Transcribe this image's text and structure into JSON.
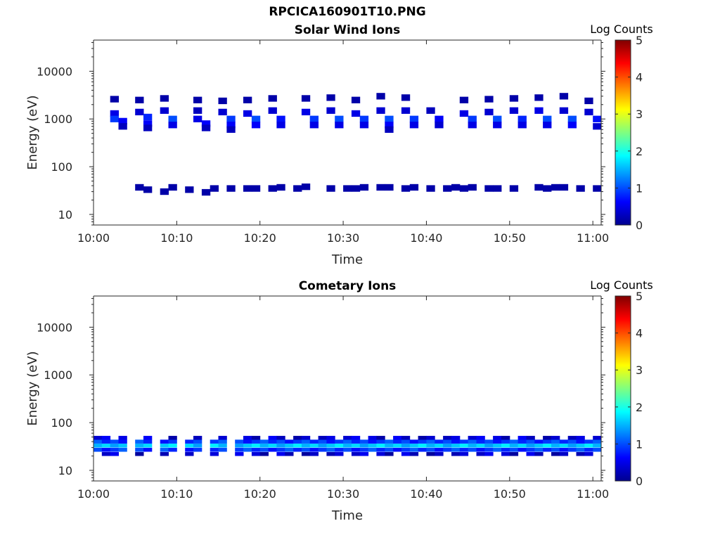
{
  "figure_title": "RPCICA160901T10.PNG",
  "colors": {
    "colormap": "jet",
    "axis": "#262626",
    "background": "#ffffff"
  },
  "chart_data": [
    {
      "type": "heatmap",
      "title": "Solar Wind Ions",
      "xlabel": "Time",
      "ylabel": "Energy (eV)",
      "y_scale": "log",
      "ylim": [
        6,
        45000
      ],
      "xlim": [
        "10:00",
        "11:01"
      ],
      "x_ticks": [
        "10:00",
        "10:10",
        "10:20",
        "10:30",
        "10:40",
        "10:50",
        "11:00"
      ],
      "y_ticks": [
        "10",
        "100",
        "1000",
        "10000"
      ],
      "colorbar": {
        "label": "Log Counts",
        "min": 0,
        "max": 5,
        "ticks": [
          "0",
          "1",
          "2",
          "3",
          "4",
          "5"
        ]
      },
      "grid": false,
      "cells": [
        [
          "10:02",
          2600,
          0.2
        ],
        [
          "10:02",
          1300,
          0.5
        ],
        [
          "10:02",
          1000,
          0.9
        ],
        [
          "10:03",
          900,
          0.6
        ],
        [
          "10:03",
          700,
          0.3
        ],
        [
          "10:05",
          2500,
          0.2
        ],
        [
          "10:05",
          1400,
          0.4
        ],
        [
          "10:06",
          1100,
          0.8
        ],
        [
          "10:06",
          800,
          0.6
        ],
        [
          "10:06",
          650,
          0.3
        ],
        [
          "10:08",
          2700,
          0.2
        ],
        [
          "10:08",
          1500,
          0.4
        ],
        [
          "10:09",
          1000,
          1.0
        ],
        [
          "10:09",
          750,
          0.5
        ],
        [
          "10:12",
          2500,
          0.2
        ],
        [
          "10:12",
          1500,
          0.3
        ],
        [
          "10:12",
          1000,
          0.5
        ],
        [
          "10:13",
          800,
          0.6
        ],
        [
          "10:13",
          650,
          0.3
        ],
        [
          "10:15",
          2400,
          0.2
        ],
        [
          "10:15",
          1400,
          0.4
        ],
        [
          "10:16",
          1000,
          0.9
        ],
        [
          "10:16",
          750,
          0.6
        ],
        [
          "10:16",
          600,
          0.3
        ],
        [
          "10:18",
          2500,
          0.2
        ],
        [
          "10:18",
          1300,
          0.5
        ],
        [
          "10:19",
          1000,
          1.0
        ],
        [
          "10:19",
          750,
          0.6
        ],
        [
          "10:21",
          2700,
          0.2
        ],
        [
          "10:21",
          1500,
          0.4
        ],
        [
          "10:22",
          1000,
          0.7
        ],
        [
          "10:22",
          750,
          0.5
        ],
        [
          "10:25",
          2700,
          0.2
        ],
        [
          "10:25",
          1400,
          0.5
        ],
        [
          "10:26",
          1000,
          0.9
        ],
        [
          "10:26",
          750,
          0.5
        ],
        [
          "10:28",
          2800,
          0.2
        ],
        [
          "10:28",
          1500,
          0.4
        ],
        [
          "10:29",
          1000,
          1.0
        ],
        [
          "10:29",
          750,
          0.5
        ],
        [
          "10:31",
          2500,
          0.2
        ],
        [
          "10:31",
          1300,
          0.5
        ],
        [
          "10:32",
          1000,
          0.9
        ],
        [
          "10:32",
          750,
          0.5
        ],
        [
          "10:34",
          3000,
          0.2
        ],
        [
          "10:34",
          1500,
          0.4
        ],
        [
          "10:35",
          1000,
          1.0
        ],
        [
          "10:35",
          750,
          0.6
        ],
        [
          "10:35",
          600,
          0.3
        ],
        [
          "10:37",
          2800,
          0.2
        ],
        [
          "10:37",
          1500,
          0.4
        ],
        [
          "10:38",
          1000,
          0.9
        ],
        [
          "10:38",
          750,
          0.5
        ],
        [
          "10:40",
          1500,
          0.3
        ],
        [
          "10:41",
          1000,
          0.6
        ],
        [
          "10:41",
          750,
          0.4
        ],
        [
          "10:44",
          2500,
          0.2
        ],
        [
          "10:44",
          1300,
          0.5
        ],
        [
          "10:45",
          1000,
          0.9
        ],
        [
          "10:45",
          750,
          0.5
        ],
        [
          "10:47",
          2600,
          0.2
        ],
        [
          "10:47",
          1400,
          0.4
        ],
        [
          "10:48",
          1000,
          1.0
        ],
        [
          "10:48",
          750,
          0.5
        ],
        [
          "10:50",
          2700,
          0.2
        ],
        [
          "10:50",
          1500,
          0.4
        ],
        [
          "10:51",
          1000,
          0.8
        ],
        [
          "10:51",
          750,
          0.5
        ],
        [
          "10:53",
          2800,
          0.2
        ],
        [
          "10:53",
          1500,
          0.5
        ],
        [
          "10:54",
          1000,
          1.0
        ],
        [
          "10:54",
          750,
          0.5
        ],
        [
          "10:56",
          3000,
          0.2
        ],
        [
          "10:56",
          1500,
          0.4
        ],
        [
          "10:57",
          1000,
          1.0
        ],
        [
          "10:57",
          750,
          0.6
        ],
        [
          "10:59",
          2400,
          0.2
        ],
        [
          "10:59",
          1400,
          0.4
        ],
        [
          "11:00",
          1000,
          0.7
        ],
        [
          "11:00",
          700,
          0.4
        ],
        [
          "10:05",
          37,
          0.2
        ],
        [
          "10:06",
          33,
          0.2
        ],
        [
          "10:08",
          30,
          0.2
        ],
        [
          "10:09",
          37,
          0.2
        ],
        [
          "10:11",
          33,
          0.2
        ],
        [
          "10:13",
          29,
          0.2
        ],
        [
          "10:14",
          35,
          0.2
        ],
        [
          "10:16",
          35,
          0.2
        ],
        [
          "10:18",
          35,
          0.2
        ],
        [
          "10:19",
          35,
          0.2
        ],
        [
          "10:21",
          35,
          0.2
        ],
        [
          "10:22",
          37,
          0.2
        ],
        [
          "10:24",
          35,
          0.2
        ],
        [
          "10:25",
          38,
          0.2
        ],
        [
          "10:28",
          35,
          0.2
        ],
        [
          "10:30",
          35,
          0.2
        ],
        [
          "10:31",
          35,
          0.2
        ],
        [
          "10:32",
          37,
          0.2
        ],
        [
          "10:34",
          37,
          0.2
        ],
        [
          "10:35",
          37,
          0.2
        ],
        [
          "10:37",
          35,
          0.2
        ],
        [
          "10:38",
          37,
          0.2
        ],
        [
          "10:40",
          35,
          0.2
        ],
        [
          "10:42",
          35,
          0.2
        ],
        [
          "10:43",
          37,
          0.2
        ],
        [
          "10:44",
          35,
          0.2
        ],
        [
          "10:45",
          37,
          0.2
        ],
        [
          "10:47",
          35,
          0.2
        ],
        [
          "10:48",
          35,
          0.2
        ],
        [
          "10:50",
          35,
          0.2
        ],
        [
          "10:53",
          37,
          0.2
        ],
        [
          "10:54",
          35,
          0.2
        ],
        [
          "10:55",
          37,
          0.2
        ],
        [
          "10:56",
          37,
          0.2
        ],
        [
          "10:58",
          35,
          0.2
        ],
        [
          "11:00",
          35,
          0.2
        ]
      ]
    },
    {
      "type": "heatmap",
      "title": "Cometary Ions",
      "xlabel": "Time",
      "ylabel": "Energy (eV)",
      "y_scale": "log",
      "ylim": [
        6,
        45000
      ],
      "xlim": [
        "10:00",
        "11:01"
      ],
      "x_ticks": [
        "10:00",
        "10:10",
        "10:20",
        "10:30",
        "10:40",
        "10:50",
        "11:00"
      ],
      "y_ticks": [
        "10",
        "100",
        "1000",
        "10000"
      ],
      "colorbar": {
        "label": "Log Counts",
        "min": 0,
        "max": 5,
        "ticks": [
          "0",
          "1",
          "2",
          "3",
          "4",
          "5"
        ]
      },
      "grid": false,
      "band": {
        "energies": [
          22,
          27,
          33,
          40,
          48
        ],
        "intensity_profile": [
          0.35,
          0.9,
          1.6,
          0.9,
          0.4
        ],
        "gaps": [
          "10:04",
          "10:07",
          "10:10",
          "10:13",
          "10:16"
        ]
      }
    }
  ]
}
